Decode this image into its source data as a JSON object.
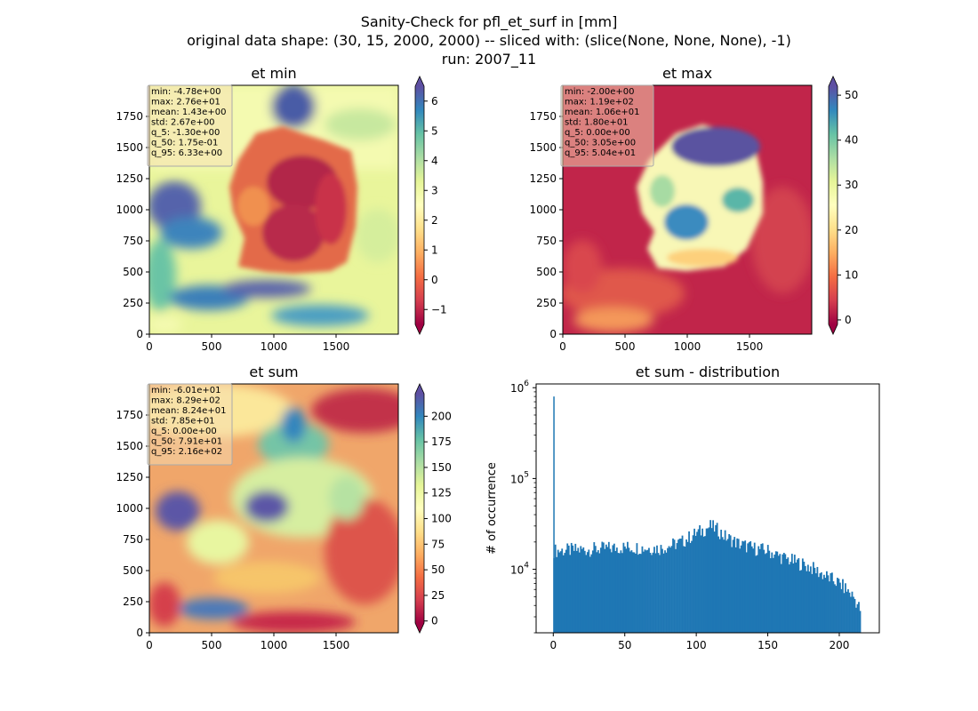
{
  "figure": {
    "title_line1": "Sanity-Check for pfl_et_surf in [mm]",
    "title_line2": "original data shape: (30, 15, 2000, 2000) -- sliced with: (slice(None, None, None), -1)",
    "title_line3": "run: 2007_11"
  },
  "panels": {
    "et_min": {
      "title": "et min",
      "stats": [
        "min: -4.78e+00",
        "max: 2.76e+01",
        "mean: 1.43e+00",
        "std: 2.67e+00",
        "q_5: -1.30e+00",
        "q_50: 1.75e-01",
        "q_95: 6.33e+00"
      ],
      "xticks": [
        0,
        500,
        1000,
        1500
      ],
      "yticks": [
        0,
        250,
        500,
        750,
        1000,
        1250,
        1500,
        1750
      ],
      "colorbar": {
        "range": [
          -1.5,
          6.5
        ],
        "ticks": [
          -1,
          0,
          1,
          2,
          3,
          4,
          5,
          6
        ],
        "labels": [
          "−1",
          "0",
          "1",
          "2",
          "3",
          "4",
          "5",
          "6"
        ]
      }
    },
    "et_max": {
      "title": "et max",
      "stats": [
        "min: -2.00e+00",
        "max: 1.19e+02",
        "mean: 1.06e+01",
        "std: 1.80e+01",
        "q_5: 0.00e+00",
        "q_50: 3.05e+00",
        "q_95: 5.04e+01"
      ],
      "xticks": [
        0,
        500,
        1000,
        1500
      ],
      "yticks": [
        0,
        250,
        500,
        750,
        1000,
        1250,
        1500,
        1750
      ],
      "colorbar": {
        "range": [
          -1,
          52
        ],
        "ticks": [
          0,
          10,
          20,
          30,
          40,
          50
        ],
        "labels": [
          "0",
          "10",
          "20",
          "30",
          "40",
          "50"
        ]
      }
    },
    "et_sum": {
      "title": "et sum",
      "stats": [
        "min: -6.01e+01",
        "max: 8.29e+02",
        "mean: 8.24e+01",
        "std: 7.85e+01",
        "q_5: 0.00e+00",
        "q_50: 7.91e+01",
        "q_95: 2.16e+02"
      ],
      "xticks": [
        0,
        500,
        1000,
        1500
      ],
      "yticks": [
        0,
        250,
        500,
        750,
        1000,
        1250,
        1500,
        1750
      ],
      "colorbar": {
        "range": [
          -2,
          222
        ],
        "ticks": [
          0,
          25,
          50,
          75,
          100,
          125,
          150,
          175,
          200
        ],
        "labels": [
          "0",
          "25",
          "50",
          "75",
          "100",
          "125",
          "150",
          "175",
          "200"
        ]
      }
    }
  },
  "chart_data": [
    {
      "type": "heatmap",
      "title": "et min",
      "xlim": [
        0,
        2000
      ],
      "ylim": [
        0,
        2000
      ],
      "colormap": "Spectral",
      "color_range": [
        -1.5,
        6.5
      ],
      "colors": {
        "low": "#9e0142",
        "mid": "#ffffbf",
        "high": "#5e4fa2"
      }
    },
    {
      "type": "heatmap",
      "title": "et max",
      "xlim": [
        0,
        2000
      ],
      "ylim": [
        0,
        2000
      ],
      "colormap": "Spectral",
      "color_range": [
        -1,
        52
      ]
    },
    {
      "type": "heatmap",
      "title": "et sum",
      "xlim": [
        0,
        2000
      ],
      "ylim": [
        0,
        2000
      ],
      "colormap": "Spectral",
      "color_range": [
        -2,
        222
      ]
    },
    {
      "type": "bar",
      "title": "et sum - distribution",
      "ylabel": "# of occurrence",
      "yscale": "log",
      "ylim": [
        2000,
        1100000
      ],
      "xlim": [
        -12,
        228
      ],
      "xticks": [
        0,
        50,
        100,
        150,
        200
      ],
      "yticks": [
        10000,
        100000,
        1000000
      ],
      "ytick_labels": [
        [
          "10",
          "4"
        ],
        [
          "10",
          "5"
        ],
        [
          "10",
          "6"
        ]
      ],
      "bar_color": "#1f77b4",
      "bins": {
        "x": [
          0,
          25,
          50,
          75,
          90,
          100,
          105,
          110,
          115,
          120,
          130,
          140,
          150,
          160,
          170,
          180,
          190,
          200,
          205,
          210,
          215
        ],
        "count": [
          16000,
          16500,
          17500,
          17000,
          20000,
          25000,
          27000,
          30000,
          27000,
          23000,
          19000,
          17000,
          16000,
          13500,
          12000,
          10500,
          8500,
          7000,
          6000,
          5000,
          3500
        ]
      },
      "spike": {
        "x": 0,
        "count": 800000
      }
    }
  ]
}
